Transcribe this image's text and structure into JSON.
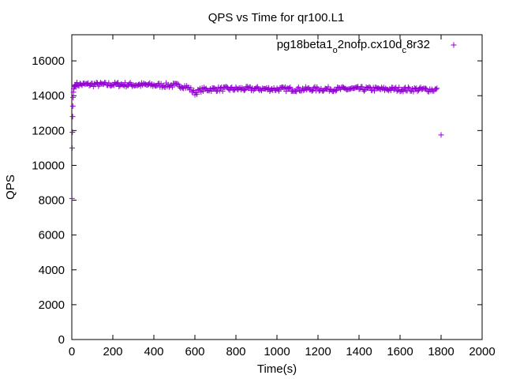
{
  "chart_data": {
    "type": "scatter",
    "title": "QPS vs Time for qr100.L1",
    "xlabel": "Time(s)",
    "ylabel": "QPS",
    "xlim": [
      0,
      2000
    ],
    "ylim": [
      0,
      17500
    ],
    "xticks": [
      0,
      200,
      400,
      600,
      800,
      1000,
      1200,
      1400,
      1600,
      1800,
      2000
    ],
    "yticks": [
      0,
      2000,
      4000,
      6000,
      8000,
      10000,
      12000,
      14000,
      16000
    ],
    "grid": false,
    "legend_position": "top-right",
    "marker": "+",
    "color": "#9400d3",
    "series": [
      {
        "legend_parts": [
          "pg18beta1",
          "o",
          "2nofp.cx10d",
          "c",
          "8r32"
        ],
        "legend_sub_indices": [
          1,
          3
        ],
        "sample_step": 5,
        "x": [
          1,
          2,
          3,
          4,
          5,
          6,
          8,
          10,
          12,
          14,
          16,
          18,
          20,
          1800
        ],
        "y": [
          8100,
          11000,
          11900,
          12800,
          13400,
          13900,
          14200,
          14400,
          14500,
          14550,
          14600,
          14620,
          14640,
          11750
        ],
        "trend_x": [
          20,
          60,
          100,
          160,
          200,
          250,
          300,
          350,
          400,
          450,
          500,
          540,
          560,
          575,
          590,
          600,
          615,
          630,
          650,
          700,
          800,
          900,
          1000,
          1100,
          1200,
          1300,
          1400,
          1500,
          1600,
          1700,
          1780
        ],
        "trend_y": [
          14640,
          14640,
          14650,
          14640,
          14650,
          14640,
          14630,
          14620,
          14610,
          14600,
          14590,
          14560,
          14500,
          14400,
          14250,
          14150,
          14250,
          14330,
          14360,
          14380,
          14390,
          14390,
          14380,
          14370,
          14380,
          14380,
          14390,
          14380,
          14370,
          14360,
          14340
        ]
      }
    ]
  }
}
